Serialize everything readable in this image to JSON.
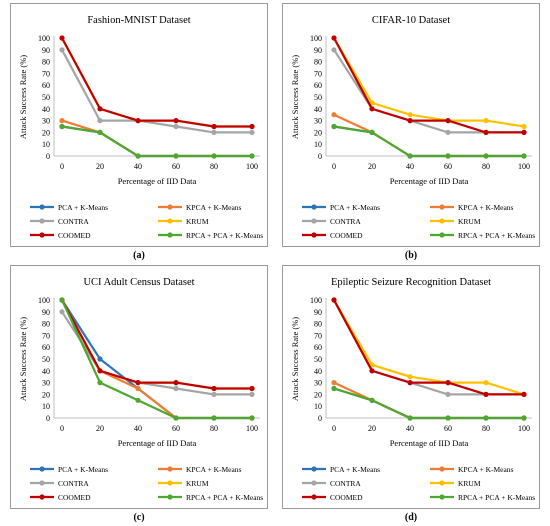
{
  "series_colors": {
    "pca_kmeans": "#2E75B6",
    "kpca_kmeans": "#ED7D31",
    "contra": "#A5A5A5",
    "krum": "#FFC000",
    "coomed": "#C00000",
    "rpca_pca_kmeans": "#4EA72E"
  },
  "chart_data": [
    {
      "type": "line",
      "title": "Fashion-MNIST Dataset",
      "xlabel": "Percentage of IID Data",
      "ylabel": "Attack Success Rate (%)",
      "x": [
        0,
        20,
        40,
        60,
        80,
        100
      ],
      "yticks": [
        0,
        10,
        20,
        30,
        40,
        50,
        60,
        70,
        80,
        90,
        100
      ],
      "ylim": [
        0,
        100
      ],
      "grid": false,
      "legend_position": "bottom",
      "caption": "(a)",
      "series": [
        {
          "key": "pca_kmeans",
          "name": "PCA + K-Means",
          "values": [
            25,
            20,
            0,
            0,
            0,
            0
          ]
        },
        {
          "key": "kpca_kmeans",
          "name": "KPCA + K-Means",
          "values": [
            30,
            20,
            0,
            0,
            0,
            0
          ]
        },
        {
          "key": "contra",
          "name": "CONTRA",
          "values": [
            90,
            30,
            30,
            25,
            20,
            20
          ]
        },
        {
          "key": "krum",
          "name": "KRUM",
          "values": [
            100,
            40,
            30,
            30,
            25,
            25
          ]
        },
        {
          "key": "coomed",
          "name": "COOMED",
          "values": [
            100,
            40,
            30,
            30,
            25,
            25
          ]
        },
        {
          "key": "rpca_pca_kmeans",
          "name": "RPCA + PCA + K-Means",
          "values": [
            25,
            20,
            0,
            0,
            0,
            0
          ]
        }
      ]
    },
    {
      "type": "line",
      "title": "CIFAR-10 Dataset",
      "xlabel": "Percentage of IID Data",
      "ylabel": "Attack Success Rate (%)",
      "x": [
        0,
        20,
        40,
        60,
        80,
        100
      ],
      "yticks": [
        0,
        10,
        20,
        30,
        40,
        50,
        60,
        70,
        80,
        90,
        100
      ],
      "ylim": [
        0,
        100
      ],
      "grid": false,
      "legend_position": "bottom",
      "caption": "(b)",
      "series": [
        {
          "key": "pca_kmeans",
          "name": "PCA + K-Means",
          "values": [
            25,
            20,
            0,
            0,
            0,
            0
          ]
        },
        {
          "key": "kpca_kmeans",
          "name": "KPCA + K-Means",
          "values": [
            35,
            20,
            0,
            0,
            0,
            0
          ]
        },
        {
          "key": "contra",
          "name": "CONTRA",
          "values": [
            90,
            40,
            30,
            20,
            20,
            20
          ]
        },
        {
          "key": "krum",
          "name": "KRUM",
          "values": [
            100,
            45,
            35,
            30,
            30,
            25
          ]
        },
        {
          "key": "coomed",
          "name": "COOMED",
          "values": [
            100,
            40,
            30,
            30,
            20,
            20
          ]
        },
        {
          "key": "rpca_pca_kmeans",
          "name": "RPCA + PCA + K-Means",
          "values": [
            25,
            20,
            0,
            0,
            0,
            0
          ]
        }
      ]
    },
    {
      "type": "line",
      "title": "UCI Adult Census Dataset",
      "xlabel": "Percentage of IID Data",
      "ylabel": "Attack Success Rate (%)",
      "x": [
        0,
        20,
        40,
        60,
        80,
        100
      ],
      "yticks": [
        0,
        10,
        20,
        30,
        40,
        50,
        60,
        70,
        80,
        90,
        100
      ],
      "ylim": [
        0,
        100
      ],
      "grid": false,
      "legend_position": "bottom",
      "caption": "(c)",
      "series": [
        {
          "key": "pca_kmeans",
          "name": "PCA + K-Means",
          "values": [
            100,
            50,
            25,
            0,
            0,
            0
          ]
        },
        {
          "key": "kpca_kmeans",
          "name": "KPCA + K-Means",
          "values": [
            100,
            40,
            25,
            0,
            0,
            0
          ]
        },
        {
          "key": "contra",
          "name": "CONTRA",
          "values": [
            90,
            40,
            30,
            25,
            20,
            20
          ]
        },
        {
          "key": "krum",
          "name": "KRUM",
          "values": [
            100,
            40,
            30,
            30,
            25,
            25
          ]
        },
        {
          "key": "coomed",
          "name": "COOMED",
          "values": [
            100,
            40,
            30,
            30,
            25,
            25
          ]
        },
        {
          "key": "rpca_pca_kmeans",
          "name": "RPCA + PCA + K-Means",
          "values": [
            100,
            30,
            15,
            0,
            0,
            0
          ]
        }
      ]
    },
    {
      "type": "line",
      "title": "Epileptic Seizure Recognition Dataset",
      "xlabel": "Percentage of IID Data",
      "ylabel": "Attack Success Rate (%)",
      "x": [
        0,
        20,
        40,
        60,
        80,
        100
      ],
      "yticks": [
        0,
        10,
        20,
        30,
        40,
        50,
        60,
        70,
        80,
        90,
        100
      ],
      "ylim": [
        0,
        100
      ],
      "grid": false,
      "legend_position": "bottom",
      "caption": "(d)",
      "series": [
        {
          "key": "pca_kmeans",
          "name": "PCA + K-Means",
          "values": [
            25,
            15,
            0,
            0,
            0,
            0
          ]
        },
        {
          "key": "kpca_kmeans",
          "name": "KPCA + K-Means",
          "values": [
            30,
            15,
            0,
            0,
            0,
            0
          ]
        },
        {
          "key": "contra",
          "name": "CONTRA",
          "values": [
            100,
            40,
            30,
            20,
            20,
            20
          ]
        },
        {
          "key": "krum",
          "name": "KRUM",
          "values": [
            100,
            45,
            35,
            30,
            30,
            20
          ]
        },
        {
          "key": "coomed",
          "name": "COOMED",
          "values": [
            100,
            40,
            30,
            30,
            20,
            20
          ]
        },
        {
          "key": "rpca_pca_kmeans",
          "name": "RPCA + PCA + K-Means",
          "values": [
            25,
            15,
            0,
            0,
            0,
            0
          ]
        }
      ]
    }
  ]
}
